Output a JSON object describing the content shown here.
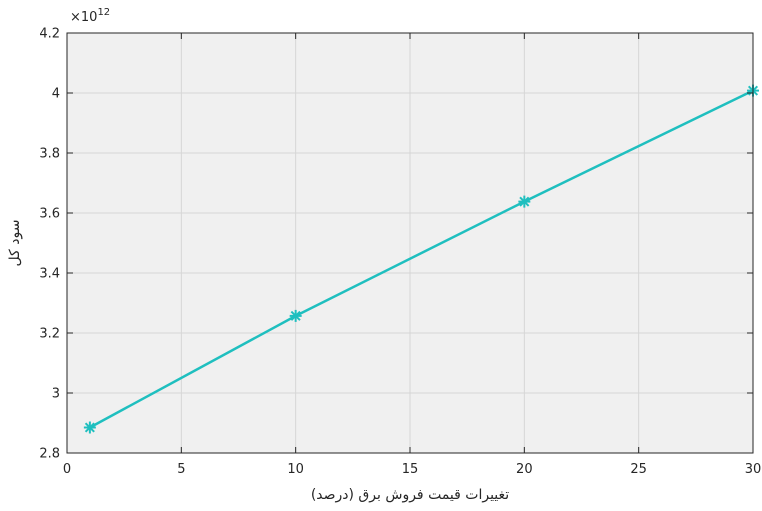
{
  "chart_data": {
    "type": "line",
    "title": "",
    "xlabel": "تغییرات قیمت فروش برق (درصد)",
    "ylabel": "سود کل",
    "y_multiplier": "×10",
    "y_exponent": "12",
    "xlim": [
      0,
      30
    ],
    "ylim": [
      2.8,
      4.2
    ],
    "xticks": [
      0,
      5,
      10,
      15,
      20,
      25,
      30
    ],
    "yticks": [
      2.8,
      3.0,
      3.2,
      3.4,
      3.6,
      3.8,
      4.0,
      4.2
    ],
    "xtick_labels": [
      "0",
      "5",
      "10",
      "15",
      "20",
      "25",
      "30"
    ],
    "ytick_labels": [
      "2.8",
      "3",
      "3.2",
      "3.4",
      "3.6",
      "3.8",
      "4",
      "4.2"
    ],
    "grid": true,
    "background": "#f0f0f0",
    "series": [
      {
        "color": "#1fbfbf",
        "marker": "asterisk",
        "x": [
          1,
          10,
          20,
          30
        ],
        "y": [
          2.885,
          3.257,
          3.638,
          4.008
        ]
      }
    ]
  }
}
